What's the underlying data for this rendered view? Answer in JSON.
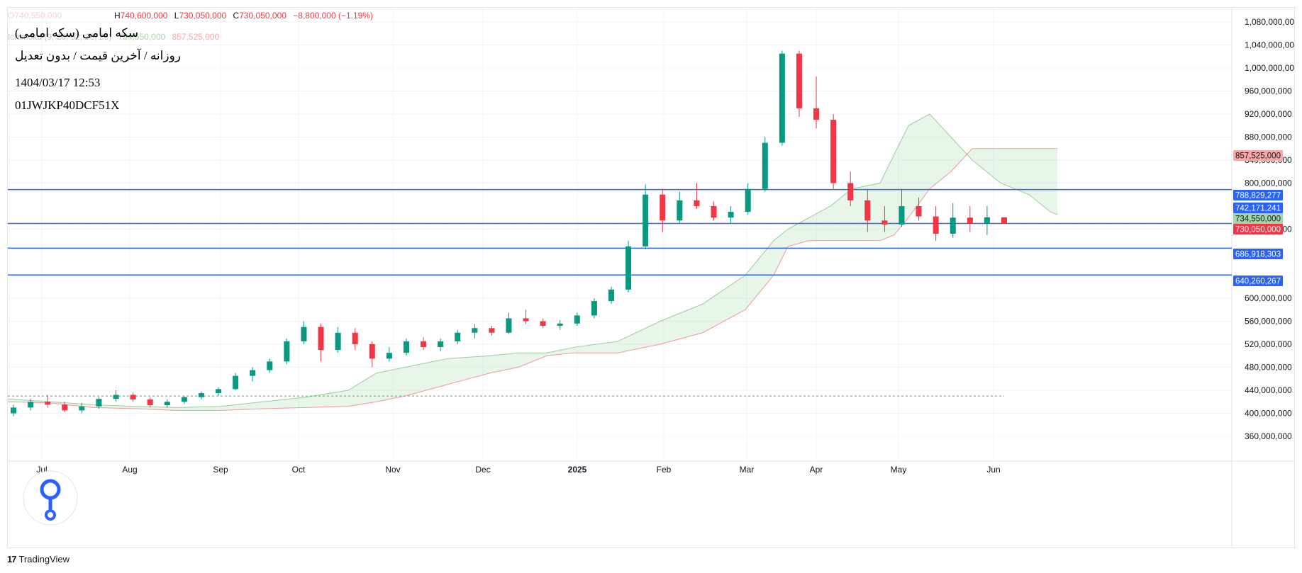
{
  "legend": {
    "ohlc": {
      "o_label": "O",
      "o_value": "740,550,000",
      "h_label": "H",
      "h_value": "740,600,000",
      "l_label": "L",
      "l_value": "730,050,000",
      "c_label": "C",
      "c_value": "730,050,000",
      "change": "−8,800,000 (−1.19%)"
    },
    "ichimoku_label": "Ichimoku (9, 26, 52, 26, 26)",
    "ichimoku_value_1": "734,550,000",
    "ichimoku_value_2": "857,525,000"
  },
  "info": {
    "title": "سکه امامی (سکه امامی)",
    "subtitle": "روزانه / آخرین قیمت / بدون تعدیل",
    "timestamp": "1404/03/17 12:53",
    "code": "01JWJKP40DCF51X"
  },
  "price_axis_labels": [
    "1,080,000,000",
    "1,040,000,000",
    "1,000,000,000",
    "960,000,000",
    "920,000,000",
    "880,000,000",
    "840,000,000",
    "800,000,000",
    "720,000,000",
    "600,000,000",
    "560,000,000",
    "520,000,000",
    "480,000,000",
    "440,000,000",
    "400,000,000",
    "360,000,000"
  ],
  "price_axis_values": [
    1080000000,
    1040000000,
    1000000000,
    960000000,
    920000000,
    880000000,
    840000000,
    800000000,
    720000000,
    600000000,
    560000000,
    520000000,
    480000000,
    440000000,
    400000000,
    360000000
  ],
  "badges": [
    {
      "text": "857,525,000",
      "value": 857525000,
      "bg": "#f7a9a9",
      "fg": "#131722"
    },
    {
      "text": "788,829,277",
      "value": 788829277,
      "bg": "#2962ff",
      "fg": "#ffffff"
    },
    {
      "text": "742,171,241",
      "value": 742171241,
      "bg": "#2962ff",
      "fg": "#ffffff"
    },
    {
      "text": "734,550,000",
      "value": 734550000,
      "bg": "#a5d6a7",
      "fg": "#131722"
    },
    {
      "text": "730,050,000",
      "value": 730050000,
      "bg": "#f23645",
      "fg": "#ffffff"
    },
    {
      "text": "686,918,303",
      "value": 686918303,
      "bg": "#2962ff",
      "fg": "#ffffff"
    },
    {
      "text": "640,260,267",
      "value": 640260267,
      "bg": "#2962ff",
      "fg": "#ffffff"
    }
  ],
  "time_axis_labels": [
    {
      "label": "Jul",
      "bold": false
    },
    {
      "label": "Aug",
      "bold": false
    },
    {
      "label": "Sep",
      "bold": false
    },
    {
      "label": "Oct",
      "bold": false
    },
    {
      "label": "Nov",
      "bold": false
    },
    {
      "label": "Dec",
      "bold": false
    },
    {
      "label": "2025",
      "bold": true
    },
    {
      "label": "Feb",
      "bold": false
    },
    {
      "label": "Mar",
      "bold": false
    },
    {
      "label": "Apr",
      "bold": false
    },
    {
      "label": "May",
      "bold": false
    },
    {
      "label": "Jun",
      "bold": false
    }
  ],
  "footer": {
    "brand": "TradingView",
    "mark": "17"
  },
  "colors": {
    "up": "#089981",
    "down": "#f23645",
    "hline": "#2962ff",
    "cloud_bull": "#a5d6a7",
    "cloud_bear": "#faa1a4",
    "span_a": "#43a047",
    "span_b": "#f23645",
    "grid": "#f0f3fa"
  },
  "chart_data": {
    "type": "candlestick",
    "y_range": [
      340000000,
      1100000000
    ],
    "horizontal_levels": [
      788829277,
      742171241,
      686918303,
      640260267
    ],
    "last_price_line": 730050000,
    "reference_dotted_line": 430000000,
    "candles_weekly_approx": [
      {
        "o": 400000000,
        "h": 415000000,
        "l": 395000000,
        "c": 410000000
      },
      {
        "o": 410000000,
        "h": 425000000,
        "l": 405000000,
        "c": 420000000
      },
      {
        "o": 420000000,
        "h": 432000000,
        "l": 410000000,
        "c": 415000000
      },
      {
        "o": 415000000,
        "h": 420000000,
        "l": 402000000,
        "c": 405000000
      },
      {
        "o": 405000000,
        "h": 418000000,
        "l": 400000000,
        "c": 412000000
      },
      {
        "o": 412000000,
        "h": 428000000,
        "l": 408000000,
        "c": 425000000
      },
      {
        "o": 425000000,
        "h": 440000000,
        "l": 420000000,
        "c": 432000000
      },
      {
        "o": 432000000,
        "h": 436000000,
        "l": 420000000,
        "c": 424000000
      },
      {
        "o": 424000000,
        "h": 428000000,
        "l": 410000000,
        "c": 414000000
      },
      {
        "o": 414000000,
        "h": 424000000,
        "l": 410000000,
        "c": 420000000
      },
      {
        "o": 420000000,
        "h": 430000000,
        "l": 416000000,
        "c": 428000000
      },
      {
        "o": 428000000,
        "h": 438000000,
        "l": 424000000,
        "c": 435000000
      },
      {
        "o": 435000000,
        "h": 445000000,
        "l": 430000000,
        "c": 442000000
      },
      {
        "o": 442000000,
        "h": 470000000,
        "l": 440000000,
        "c": 465000000
      },
      {
        "o": 465000000,
        "h": 480000000,
        "l": 455000000,
        "c": 475000000
      },
      {
        "o": 475000000,
        "h": 495000000,
        "l": 470000000,
        "c": 490000000
      },
      {
        "o": 490000000,
        "h": 530000000,
        "l": 485000000,
        "c": 525000000
      },
      {
        "o": 525000000,
        "h": 560000000,
        "l": 520000000,
        "c": 550000000
      },
      {
        "o": 550000000,
        "h": 556000000,
        "l": 490000000,
        "c": 510000000
      },
      {
        "o": 510000000,
        "h": 550000000,
        "l": 505000000,
        "c": 540000000
      },
      {
        "o": 540000000,
        "h": 548000000,
        "l": 510000000,
        "c": 520000000
      },
      {
        "o": 520000000,
        "h": 525000000,
        "l": 480000000,
        "c": 495000000
      },
      {
        "o": 495000000,
        "h": 515000000,
        "l": 490000000,
        "c": 505000000
      },
      {
        "o": 505000000,
        "h": 530000000,
        "l": 500000000,
        "c": 525000000
      },
      {
        "o": 525000000,
        "h": 532000000,
        "l": 510000000,
        "c": 515000000
      },
      {
        "o": 515000000,
        "h": 530000000,
        "l": 508000000,
        "c": 525000000
      },
      {
        "o": 525000000,
        "h": 545000000,
        "l": 520000000,
        "c": 540000000
      },
      {
        "o": 540000000,
        "h": 555000000,
        "l": 530000000,
        "c": 548000000
      },
      {
        "o": 548000000,
        "h": 552000000,
        "l": 535000000,
        "c": 540000000
      },
      {
        "o": 540000000,
        "h": 575000000,
        "l": 538000000,
        "c": 565000000
      },
      {
        "o": 565000000,
        "h": 580000000,
        "l": 555000000,
        "c": 560000000
      },
      {
        "o": 560000000,
        "h": 565000000,
        "l": 548000000,
        "c": 552000000
      },
      {
        "o": 552000000,
        "h": 562000000,
        "l": 545000000,
        "c": 556000000
      },
      {
        "o": 556000000,
        "h": 575000000,
        "l": 552000000,
        "c": 570000000
      },
      {
        "o": 570000000,
        "h": 600000000,
        "l": 565000000,
        "c": 595000000
      },
      {
        "o": 595000000,
        "h": 620000000,
        "l": 590000000,
        "c": 615000000
      },
      {
        "o": 615000000,
        "h": 700000000,
        "l": 610000000,
        "c": 690000000
      },
      {
        "o": 690000000,
        "h": 798000000,
        "l": 685000000,
        "c": 780000000
      },
      {
        "o": 780000000,
        "h": 790000000,
        "l": 715000000,
        "c": 735000000
      },
      {
        "o": 735000000,
        "h": 785000000,
        "l": 730000000,
        "c": 770000000
      },
      {
        "o": 770000000,
        "h": 800000000,
        "l": 755000000,
        "c": 760000000
      },
      {
        "o": 760000000,
        "h": 768000000,
        "l": 735000000,
        "c": 740000000
      },
      {
        "o": 740000000,
        "h": 760000000,
        "l": 730000000,
        "c": 750000000
      },
      {
        "o": 750000000,
        "h": 800000000,
        "l": 745000000,
        "c": 790000000
      },
      {
        "o": 790000000,
        "h": 880000000,
        "l": 785000000,
        "c": 870000000
      },
      {
        "o": 870000000,
        "h": 1030000000,
        "l": 865000000,
        "c": 1025000000
      },
      {
        "o": 1025000000,
        "h": 1030000000,
        "l": 915000000,
        "c": 930000000
      },
      {
        "o": 930000000,
        "h": 985000000,
        "l": 895000000,
        "c": 910000000
      },
      {
        "o": 910000000,
        "h": 920000000,
        "l": 790000000,
        "c": 800000000
      },
      {
        "o": 800000000,
        "h": 820000000,
        "l": 760000000,
        "c": 770000000
      },
      {
        "o": 770000000,
        "h": 790000000,
        "l": 715000000,
        "c": 735000000
      },
      {
        "o": 735000000,
        "h": 760000000,
        "l": 715000000,
        "c": 728000000
      },
      {
        "o": 728000000,
        "h": 790000000,
        "l": 724000000,
        "c": 760000000
      },
      {
        "o": 760000000,
        "h": 775000000,
        "l": 735000000,
        "c": 742000000
      },
      {
        "o": 742000000,
        "h": 760000000,
        "l": 700000000,
        "c": 712000000
      },
      {
        "o": 712000000,
        "h": 765000000,
        "l": 705000000,
        "c": 740000000
      },
      {
        "o": 740000000,
        "h": 760000000,
        "l": 715000000,
        "c": 730000000
      },
      {
        "o": 730000000,
        "h": 760000000,
        "l": 710000000,
        "c": 740550000
      },
      {
        "o": 740550000,
        "h": 740600000,
        "l": 730050000,
        "c": 730050000
      }
    ]
  }
}
